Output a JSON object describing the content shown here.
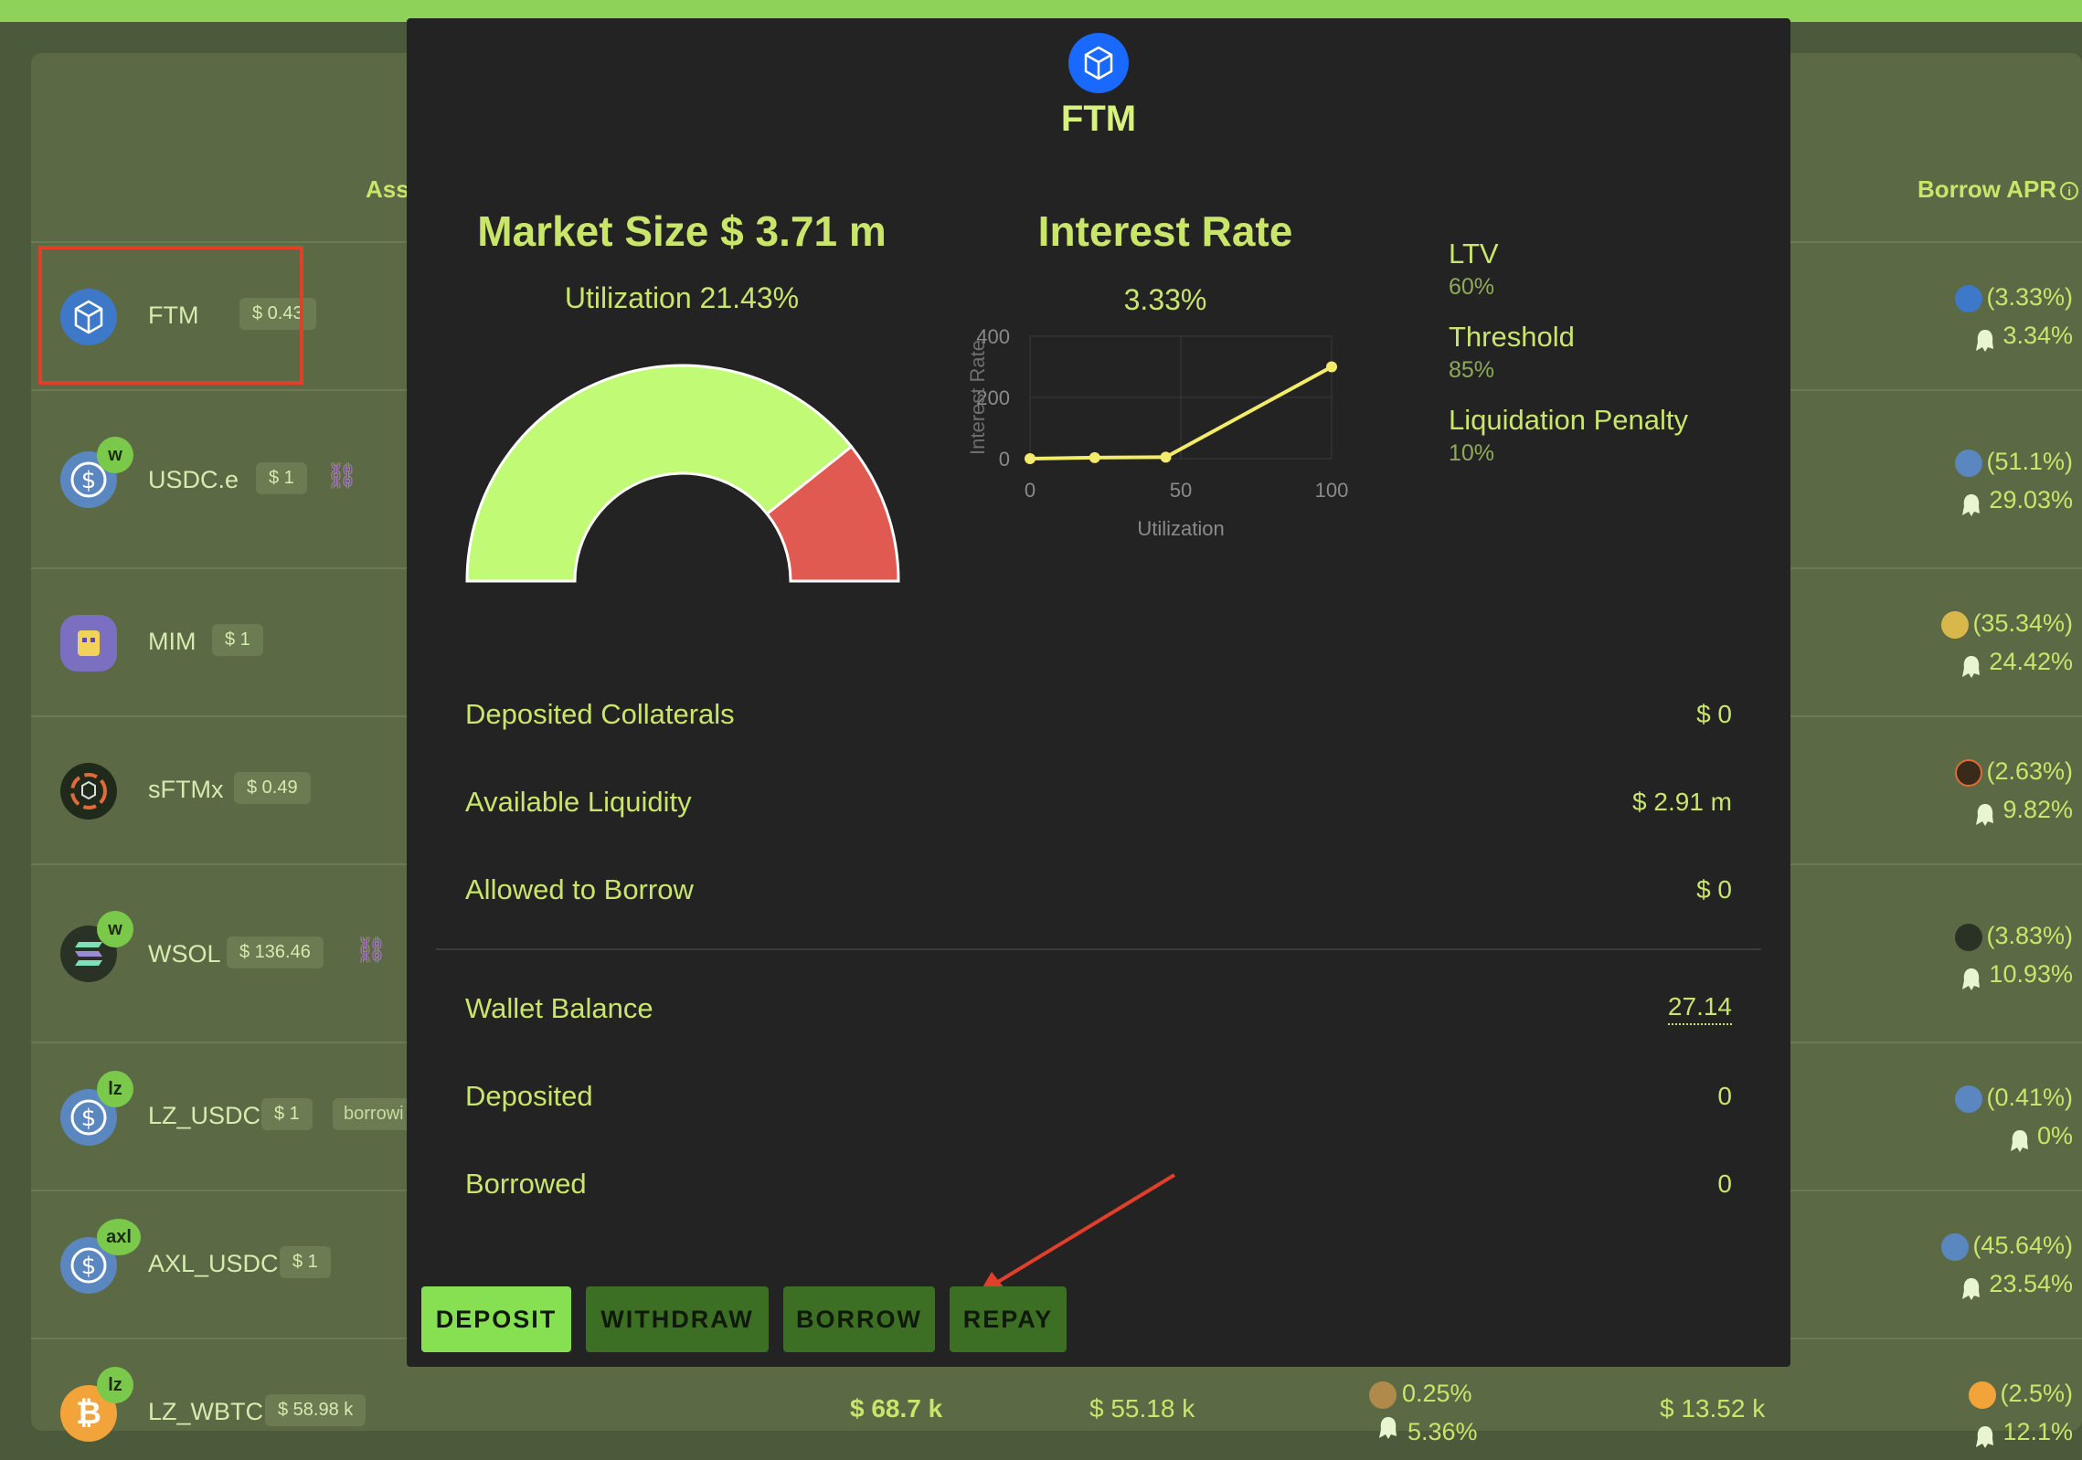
{
  "table": {
    "header_asset": "Ass",
    "header_borrow_apr": "Borrow APR",
    "rows": [
      {
        "name": "FTM",
        "price": "$ 0.43",
        "apr_top": "(3.33%)",
        "apr_bottom": "3.34%"
      },
      {
        "name": "USDC.e",
        "price": "$ 1",
        "badge": "w",
        "apr_top": "(51.1%)",
        "apr_bottom": "29.03%"
      },
      {
        "name": "MIM",
        "price": "$ 1",
        "apr_top": "(35.34%)",
        "apr_bottom": "24.42%"
      },
      {
        "name": "sFTMx",
        "price": "$ 0.49",
        "apr_top": "(2.63%)",
        "apr_bottom": "9.82%"
      },
      {
        "name": "WSOL",
        "price": "$ 136.46",
        "badge": "w",
        "apr_top": "(3.83%)",
        "apr_bottom": "10.93%"
      },
      {
        "name": "LZ_USDC",
        "price": "$ 1",
        "badge": "lz",
        "tag": "borrowi",
        "apr_top": "(0.41%)",
        "apr_bottom": "0%"
      },
      {
        "name": "AXL_USDC",
        "price": "$ 1",
        "badge": "axl",
        "apr_top": "(45.64%)",
        "apr_bottom": "23.54%"
      },
      {
        "name": "LZ_WBTC",
        "price": "$ 58.98 k",
        "badge": "lz",
        "apr_top": "(2.5%)",
        "apr_bottom": "12.1%",
        "col_market": "$ 68.7 k",
        "col_liquidity": "$ 55.18 k",
        "col_deposit_apr_top": "0.25%",
        "col_deposit_apr_bottom": "5.36%",
        "col_borrowed": "$ 13.52 k"
      }
    ]
  },
  "modal": {
    "asset": "FTM",
    "market_size": "Market Size $ 3.71 m",
    "utilization": "Utilization 21.43%",
    "interest_rate_title": "Interest Rate",
    "interest_rate_value": "3.33%",
    "params": [
      {
        "label": "LTV",
        "value": "60%"
      },
      {
        "label": "Threshold",
        "value": "85%"
      },
      {
        "label": "Liquidation Penalty",
        "value": "10%"
      }
    ],
    "info": [
      {
        "label": "Deposited Collaterals",
        "value": "$ 0"
      },
      {
        "label": "Available Liquidity",
        "value": "$ 2.91 m"
      },
      {
        "label": "Allowed to Borrow",
        "value": "$ 0"
      }
    ],
    "wallet": [
      {
        "label": "Wallet Balance",
        "value": "27.14"
      },
      {
        "label": "Deposited",
        "value": "0"
      },
      {
        "label": "Borrowed",
        "value": "0"
      }
    ],
    "buttons": {
      "deposit": "DEPOSIT",
      "withdraw": "WITHDRAW",
      "borrow": "BORROW",
      "repay": "REPAY"
    },
    "gauge": {
      "utilization_pct": 21.43,
      "colors": {
        "available": "#c1fa74",
        "used": "#e05a52"
      }
    }
  },
  "chart_data": {
    "type": "line",
    "title": "",
    "xlabel": "Utilization",
    "ylabel": "Interest Rate",
    "x": [
      0,
      21.43,
      45,
      100
    ],
    "y": [
      0,
      3.33,
      5,
      300
    ],
    "xticks": [
      0,
      50,
      100
    ],
    "yticks": [
      0,
      200,
      400
    ],
    "xlim": [
      0,
      100
    ],
    "ylim": [
      0,
      400
    ],
    "grid": true
  },
  "colors": {
    "accent": "#c9e56a",
    "primary_button": "#87e052",
    "secondary_button": "#3c6e23",
    "annotation": "#e0402a"
  }
}
